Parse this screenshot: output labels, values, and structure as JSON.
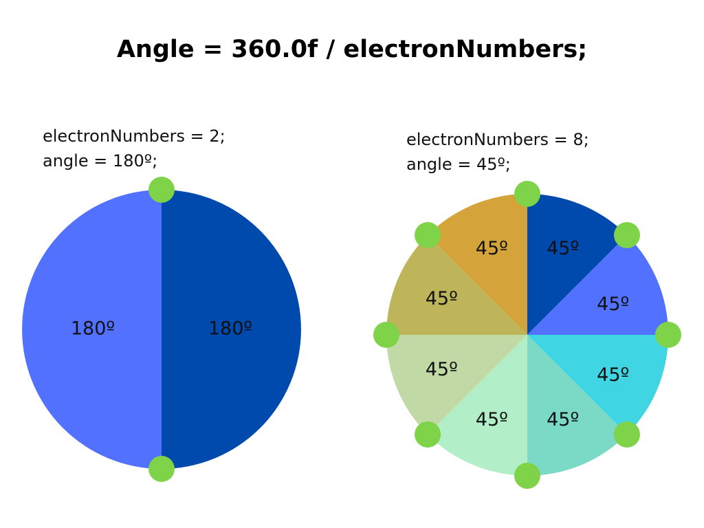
{
  "title": "Angle = 360.0f / electronNumbers;",
  "left": {
    "caption_line1": "electronNumbers = 2;",
    "caption_line2": "angle = 180º;",
    "electron_count": 2,
    "slices": [
      {
        "label": "180º",
        "color": "#004AAD"
      },
      {
        "label": "180º",
        "color": "#5271FF"
      }
    ]
  },
  "right": {
    "caption_line1": "electronNumbers = 8;",
    "caption_line2": "angle = 45º;",
    "electron_count": 8,
    "slices": [
      {
        "label": "45º",
        "color": "#004AAD"
      },
      {
        "label": "45º",
        "color": "#5271FF"
      },
      {
        "label": "45º",
        "color": "#3FD5E3"
      },
      {
        "label": "45º",
        "color": "#7ADAC6"
      },
      {
        "label": "45º",
        "color": "#B2EFC8"
      },
      {
        "label": "45º",
        "color": "#C1D9A4"
      },
      {
        "label": "45º",
        "color": "#BEB45A"
      },
      {
        "label": "45º",
        "color": "#D4A43A"
      }
    ]
  },
  "electron_color": "#7ED348"
}
